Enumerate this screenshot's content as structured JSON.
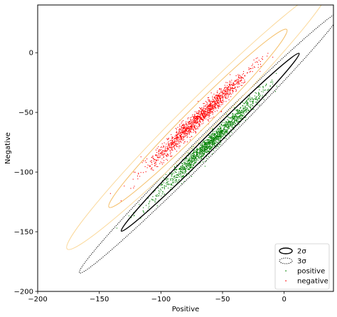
{
  "chart_data": {
    "type": "scatter",
    "title": "",
    "xlabel": "Positive",
    "ylabel": "Negative",
    "xlim": [
      -200,
      40
    ],
    "ylim": [
      -200,
      40
    ],
    "xticks": [
      -200,
      -150,
      -100,
      -50,
      0
    ],
    "yticks": [
      -200,
      -150,
      -100,
      -50,
      0
    ],
    "xtick_labels": [
      "−200",
      "−150",
      "−100",
      "−50",
      "0"
    ],
    "ytick_labels": [
      "−200",
      "−150",
      "−100",
      "−50",
      "0"
    ],
    "grid": false,
    "legend_position": "bottom-right",
    "series": [
      {
        "name": "positive",
        "kind": "points",
        "color": "#008000",
        "count": 1600,
        "center": [
          -60,
          -75
        ],
        "major_axis_deg": 45,
        "spread_major": 30,
        "spread_minor": 2.7,
        "x_range": [
          -140,
          -5
        ]
      },
      {
        "name": "negative",
        "kind": "points",
        "color": "#ff0000",
        "count": 1400,
        "center": [
          -70,
          -55
        ],
        "major_axis_deg": 45,
        "spread_major": 28,
        "spread_minor": 2.9,
        "x_range": [
          -160,
          -5
        ]
      }
    ],
    "ellipses": [
      {
        "series": "positive",
        "sigma": "2σ",
        "style": "solid",
        "color": "#000000",
        "cx": -60,
        "cy": -75,
        "major": 102,
        "minor": 5.5,
        "angle_deg": 45
      },
      {
        "series": "positive",
        "sigma": "3σ",
        "style": "dotted",
        "color": "#000000",
        "cx": -60,
        "cy": -75,
        "major": 150,
        "minor": 8.3,
        "angle_deg": 45
      },
      {
        "series": "negative",
        "sigma": "2σ",
        "style": "solid",
        "color": "#f5c06b",
        "cx": -70,
        "cy": -55,
        "major": 102,
        "minor": 9,
        "angle_deg": 45
      },
      {
        "series": "negative",
        "sigma": "3σ",
        "style": "solid",
        "color": "#fbd99c",
        "cx": -70,
        "cy": -55,
        "major": 150,
        "minor": 13.5,
        "angle_deg": 45
      }
    ],
    "legend": [
      {
        "label": "2σ",
        "marker": "ellipse-solid",
        "color": "#000000"
      },
      {
        "label": "3σ",
        "marker": "ellipse-dotted",
        "color": "#000000"
      },
      {
        "label": "positive",
        "marker": "point",
        "color": "#008000"
      },
      {
        "label": "negative",
        "marker": "point",
        "color": "#ff0000"
      }
    ]
  }
}
